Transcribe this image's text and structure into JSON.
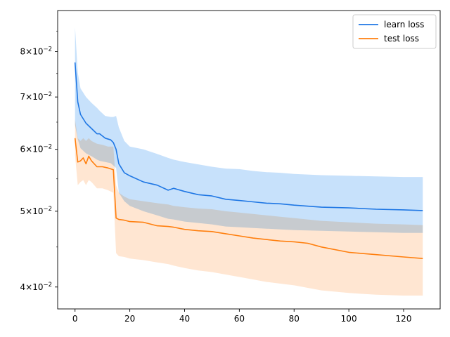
{
  "chart_data": {
    "type": "line",
    "title": "",
    "xlabel": "",
    "ylabel": "",
    "y_scale": "log",
    "xlim": [
      -6.35,
      133.35
    ],
    "ylim": [
      0.0375,
      0.0903
    ],
    "grid": false,
    "legend_placement": "top-right",
    "x_ticks": [
      0,
      20,
      40,
      60,
      80,
      100,
      120
    ],
    "x_tick_labels": [
      "0",
      "20",
      "40",
      "60",
      "80",
      "100",
      "120"
    ],
    "y_ticks": [
      0.04,
      0.05,
      0.06,
      0.07,
      0.08
    ],
    "y_tick_labels": [
      {
        "base": "4",
        "exp": "−2"
      },
      {
        "base": "5",
        "exp": "−2"
      },
      {
        "base": "6",
        "exp": "−2"
      },
      {
        "base": "7",
        "exp": "−2"
      },
      {
        "base": "8",
        "exp": "−2"
      }
    ],
    "tick_times": "×10",
    "series": [
      {
        "name": "learn loss",
        "color": "#1f77e4",
        "band_color": "#99c9f7",
        "x": [
          0,
          1,
          2,
          4,
          6,
          8,
          9,
          11,
          13,
          14,
          15,
          16,
          18,
          20,
          25,
          30,
          34,
          36,
          40,
          45,
          50,
          55,
          60,
          65,
          70,
          75,
          80,
          90,
          100,
          110,
          120,
          127
        ],
        "y": [
          0.0775,
          0.069,
          0.0665,
          0.0648,
          0.0638,
          0.0628,
          0.0628,
          0.062,
          0.0617,
          0.0612,
          0.06,
          0.0575,
          0.056,
          0.0555,
          0.0545,
          0.054,
          0.0532,
          0.0535,
          0.053,
          0.0525,
          0.0523,
          0.0518,
          0.0516,
          0.0514,
          0.0512,
          0.0511,
          0.0509,
          0.0506,
          0.0505,
          0.0503,
          0.0502,
          0.0501
        ],
        "upper": [
          0.086,
          0.0752,
          0.0718,
          0.07,
          0.0688,
          0.0678,
          0.0672,
          0.0662,
          0.066,
          0.066,
          0.0662,
          0.064,
          0.0615,
          0.0605,
          0.06,
          0.0592,
          0.0585,
          0.0582,
          0.0578,
          0.0574,
          0.057,
          0.0567,
          0.0566,
          0.0563,
          0.0561,
          0.056,
          0.0558,
          0.0556,
          0.0555,
          0.0554,
          0.0553,
          0.0553
        ],
        "lower": [
          0.0645,
          0.0618,
          0.0602,
          0.0593,
          0.0588,
          0.0582,
          0.058,
          0.0578,
          0.0576,
          0.0572,
          0.0568,
          0.0528,
          0.0515,
          0.0508,
          0.05,
          0.0494,
          0.0489,
          0.0488,
          0.0485,
          0.0483,
          0.0481,
          0.0478,
          0.0477,
          0.0476,
          0.0475,
          0.0474,
          0.0473,
          0.0472,
          0.0471,
          0.047,
          0.0469,
          0.0469
        ]
      },
      {
        "name": "test loss",
        "color": "#ff7f0e",
        "band_color": "#ffd2ad",
        "x": [
          0,
          1,
          2,
          3,
          4,
          5,
          6,
          8,
          10,
          12,
          14,
          15,
          16,
          18,
          20,
          25,
          30,
          34,
          36,
          40,
          45,
          50,
          55,
          60,
          65,
          70,
          75,
          80,
          85,
          90,
          100,
          110,
          120,
          127
        ],
        "y": [
          0.062,
          0.0578,
          0.058,
          0.0585,
          0.0575,
          0.0588,
          0.058,
          0.057,
          0.057,
          0.0568,
          0.0565,
          0.049,
          0.0488,
          0.0487,
          0.0485,
          0.0484,
          0.0479,
          0.0478,
          0.0477,
          0.0474,
          0.0472,
          0.0471,
          0.0468,
          0.0465,
          0.0462,
          0.046,
          0.0458,
          0.0457,
          0.0455,
          0.045,
          0.0443,
          0.044,
          0.0437,
          0.0435
        ],
        "upper": [
          0.0655,
          0.062,
          0.0615,
          0.062,
          0.0615,
          0.062,
          0.0615,
          0.061,
          0.0608,
          0.0605,
          0.0605,
          0.054,
          0.0528,
          0.0522,
          0.0518,
          0.0515,
          0.0512,
          0.051,
          0.0508,
          0.0506,
          0.0504,
          0.0503,
          0.05,
          0.0498,
          0.0496,
          0.0494,
          0.0492,
          0.049,
          0.0488,
          0.0486,
          0.0484,
          0.0482,
          0.0481,
          0.048
        ],
        "lower": [
          0.059,
          0.054,
          0.0545,
          0.0548,
          0.054,
          0.0548,
          0.0545,
          0.0535,
          0.0535,
          0.0532,
          0.0528,
          0.0442,
          0.0438,
          0.0437,
          0.0435,
          0.0433,
          0.043,
          0.0428,
          0.0426,
          0.0423,
          0.042,
          0.0418,
          0.0415,
          0.0412,
          0.0409,
          0.0406,
          0.0404,
          0.0402,
          0.0399,
          0.0396,
          0.0393,
          0.0391,
          0.039,
          0.039
        ]
      }
    ],
    "band_overlap_color": "#d8c8c1"
  }
}
